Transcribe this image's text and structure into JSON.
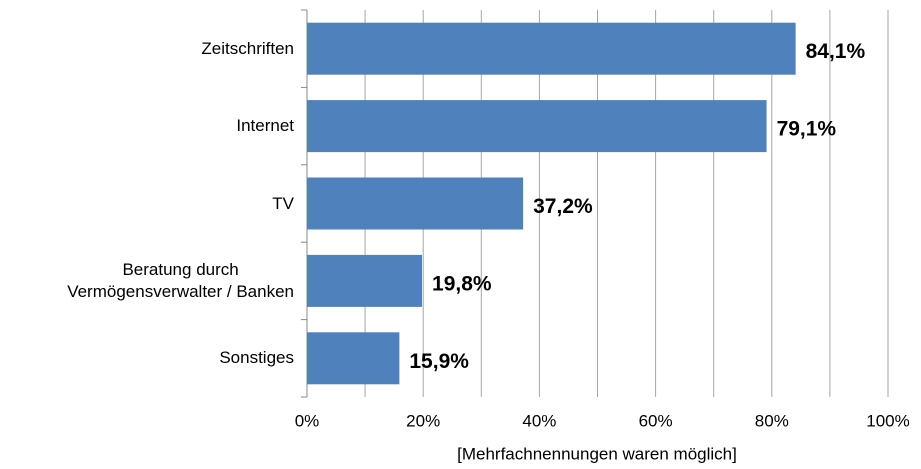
{
  "chart_data": {
    "type": "barh",
    "categories": [
      "Zeitschriften",
      "Internet",
      "TV",
      "Beratung durch\nVermögensverwalter / Banken",
      "Sonstiges"
    ],
    "values": [
      84.1,
      79.1,
      37.2,
      19.8,
      15.9
    ],
    "value_labels": [
      "84,1%",
      "79,1%",
      "37,2%",
      "19,8%",
      "15,9%"
    ],
    "color": "#4f81bd",
    "xlabel": "[Mehrfachnennungen waren möglich]",
    "xlim": [
      0,
      100
    ],
    "xticks": [
      {
        "value": 0,
        "label": "0%"
      },
      {
        "value": 20,
        "label": "20%"
      },
      {
        "value": 40,
        "label": "40%"
      },
      {
        "value": 60,
        "label": "60%"
      },
      {
        "value": 80,
        "label": "80%"
      },
      {
        "value": 100,
        "label": "100%"
      }
    ],
    "xminor": [
      10,
      30,
      50,
      70,
      90
    ],
    "grid": true
  }
}
